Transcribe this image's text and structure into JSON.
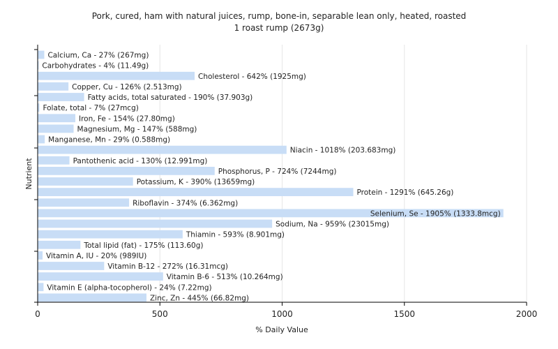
{
  "chart_data": {
    "type": "bar",
    "orientation": "horizontal",
    "title": "Pork, cured, ham with natural juices, rump, bone-in, separable lean only, heated, roasted",
    "subtitle": "1 roast rump (2673g)",
    "xlabel": "% Daily Value",
    "ylabel": "Nutrient",
    "xlim": [
      0,
      2000
    ],
    "xticks": [
      "0",
      "500",
      "1000",
      "1500",
      "2000"
    ],
    "grid": true,
    "categories": [
      "Calcium, Ca",
      "Carbohydrates",
      "Cholesterol",
      "Copper, Cu",
      "Fatty acids, total saturated",
      "Folate, total",
      "Iron, Fe",
      "Magnesium, Mg",
      "Manganese, Mn",
      "Niacin",
      "Pantothenic acid",
      "Phosphorus, P",
      "Potassium, K",
      "Protein",
      "Riboflavin",
      "Selenium, Se",
      "Sodium, Na",
      "Thiamin",
      "Total lipid (fat)",
      "Vitamin A, IU",
      "Vitamin B-12",
      "Vitamin B-6",
      "Vitamin E (alpha-tocopherol)",
      "Zinc, Zn"
    ],
    "values": [
      27,
      4,
      642,
      126,
      190,
      7,
      154,
      147,
      29,
      1018,
      130,
      724,
      390,
      1291,
      374,
      1905,
      959,
      593,
      175,
      20,
      272,
      513,
      24,
      445
    ],
    "labels": [
      "Calcium, Ca - 27% (267mg)",
      "Carbohydrates - 4% (11.49g)",
      "Cholesterol - 642% (1925mg)",
      "Copper, Cu - 126% (2.513mg)",
      "Fatty acids, total saturated - 190% (37.903g)",
      "Folate, total - 7% (27mcg)",
      "Iron, Fe - 154% (27.80mg)",
      "Magnesium, Mg - 147% (588mg)",
      "Manganese, Mn - 29% (0.588mg)",
      "Niacin - 1018% (203.683mg)",
      "Pantothenic acid - 130% (12.991mg)",
      "Phosphorus, P - 724% (7244mg)",
      "Potassium, K - 390% (13659mg)",
      "Protein - 1291% (645.26g)",
      "Riboflavin - 374% (6.362mg)",
      "Selenium, Se - 1905% (1333.8mcg)",
      "Sodium, Na - 959% (23015mg)",
      "Thiamin - 593% (8.901mg)",
      "Total lipid (fat) - 175% (113.60g)",
      "Vitamin A, IU - 20% (989IU)",
      "Vitamin B-12 - 272% (16.31mcg)",
      "Vitamin B-6 - 513% (10.264mg)",
      "Vitamin E (alpha-tocopherol) - 24% (7.22mg)",
      "Zinc, Zn - 445% (66.82mg)"
    ],
    "bar_color": "#c8ddf6"
  }
}
